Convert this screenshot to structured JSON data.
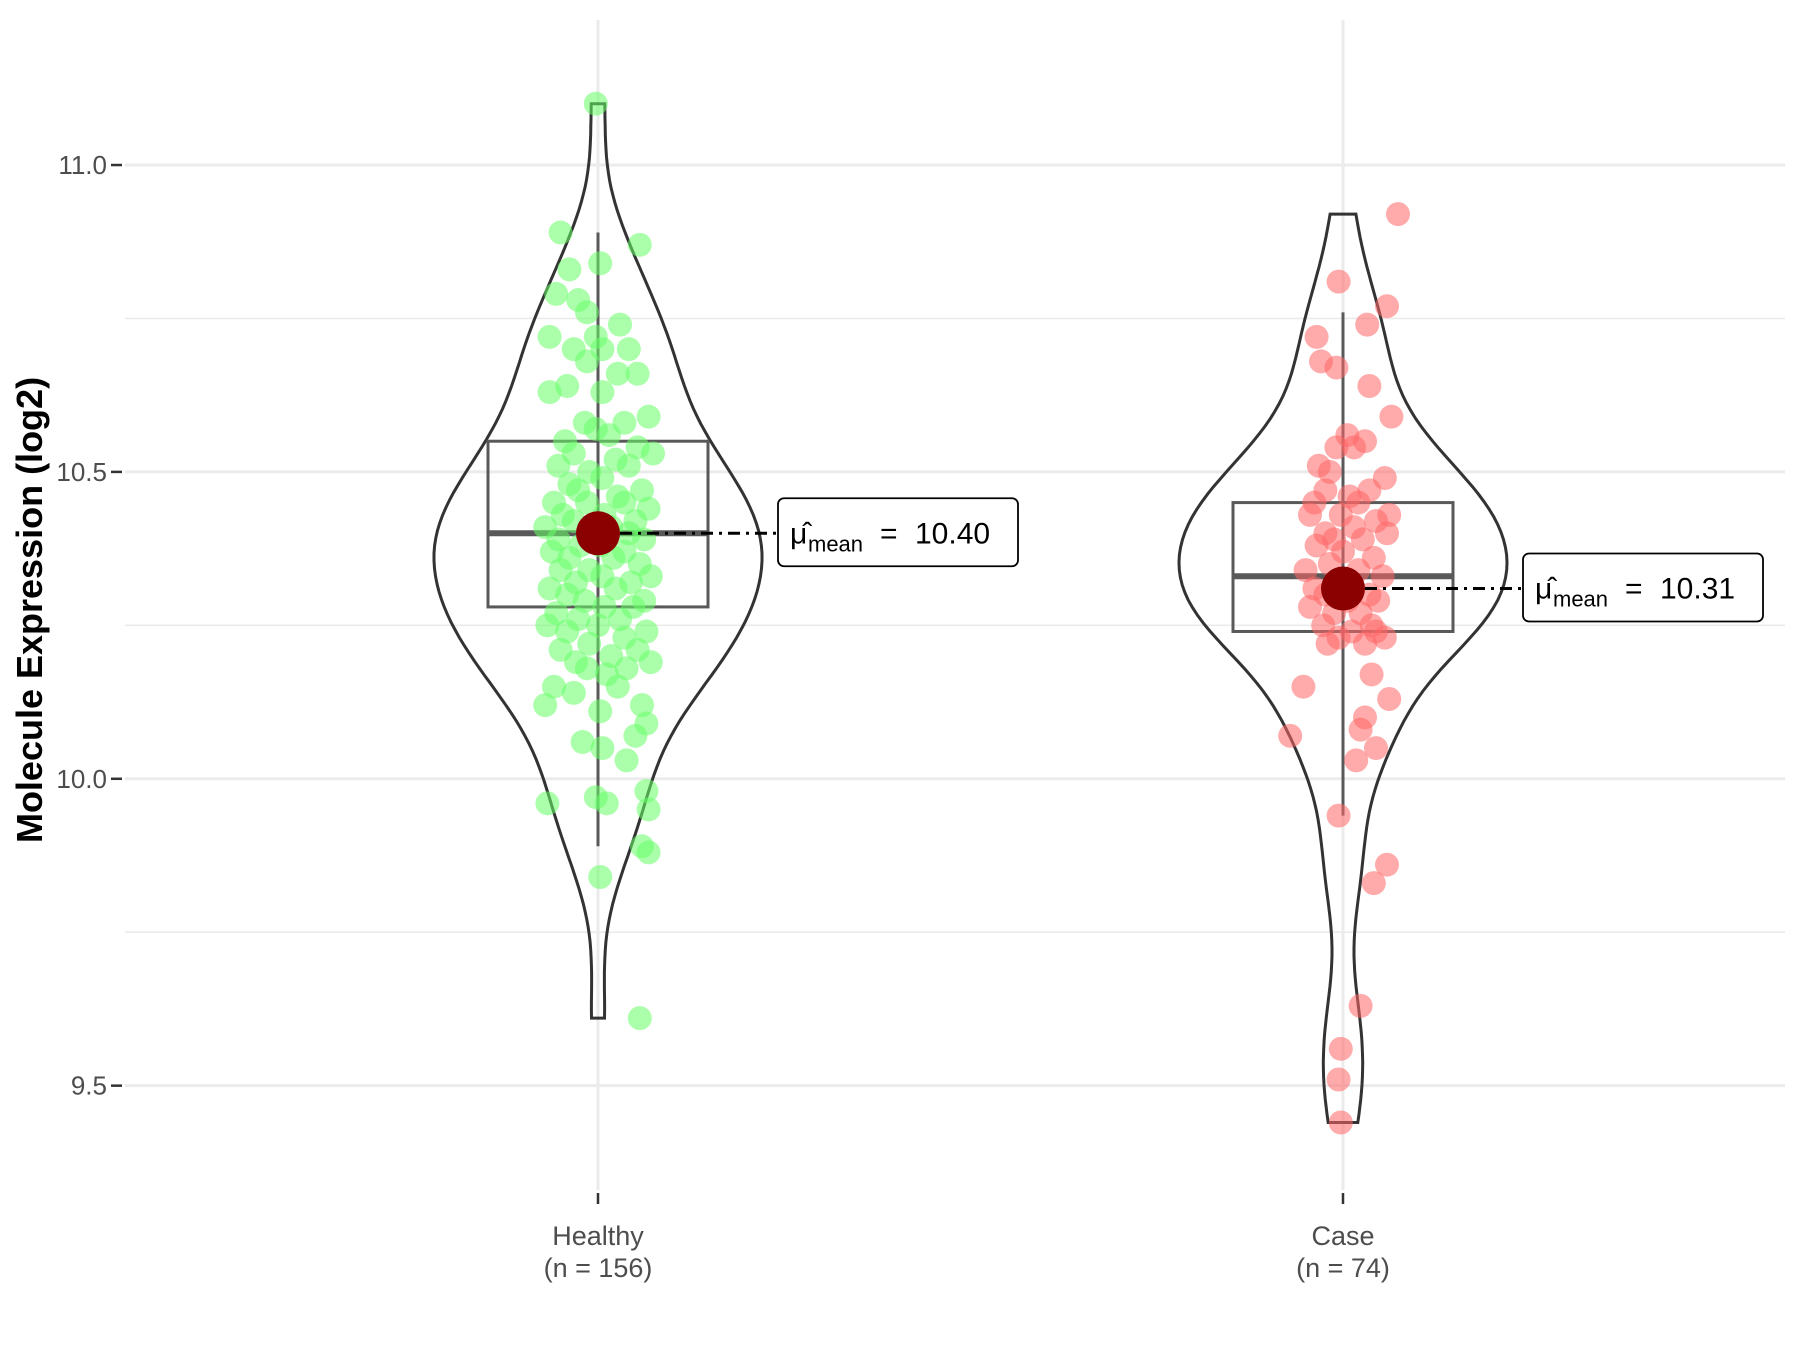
{
  "chart_data": {
    "type": "violin",
    "ylabel": "Molecule Expression (log2)",
    "xlabel": "",
    "ylim": [
      9.33,
      11.22
    ],
    "yticks": [
      9.5,
      10.0,
      10.5,
      11.0
    ],
    "ytick_labels": [
      "9.5",
      "10.0",
      "10.5",
      "11.0"
    ],
    "grid": true,
    "mean_color": "#8b0000",
    "groups": [
      {
        "key": "healthy",
        "name": "Healthy",
        "n_label": "(n = 156)",
        "color": "#66ff66",
        "violin_range": [
          9.61,
          11.1
        ],
        "whiskers": [
          9.89,
          10.89
        ],
        "box": {
          "q1": 10.28,
          "median": 10.4,
          "q3": 10.55
        },
        "mean": 10.4,
        "mean_label": "10.40",
        "mean_symbol": "μ̂",
        "mean_subscript": "mean",
        "points": [
          [
            -0.02,
            11.1
          ],
          [
            -0.34,
            10.89
          ],
          [
            0.38,
            10.87
          ],
          [
            -0.26,
            10.83
          ],
          [
            0.02,
            10.84
          ],
          [
            -0.38,
            10.79
          ],
          [
            -0.18,
            10.78
          ],
          [
            -0.1,
            10.76
          ],
          [
            0.2,
            10.74
          ],
          [
            -0.44,
            10.72
          ],
          [
            -0.02,
            10.72
          ],
          [
            0.04,
            10.7
          ],
          [
            -0.22,
            10.7
          ],
          [
            0.28,
            10.7
          ],
          [
            -0.1,
            10.68
          ],
          [
            0.36,
            10.66
          ],
          [
            0.18,
            10.66
          ],
          [
            -0.28,
            10.64
          ],
          [
            0.04,
            10.63
          ],
          [
            -0.44,
            10.63
          ],
          [
            0.46,
            10.59
          ],
          [
            0.24,
            10.58
          ],
          [
            -0.12,
            10.58
          ],
          [
            -0.02,
            10.57
          ],
          [
            0.1,
            10.56
          ],
          [
            -0.3,
            10.55
          ],
          [
            0.36,
            10.54
          ],
          [
            -0.22,
            10.53
          ],
          [
            0.5,
            10.53
          ],
          [
            0.16,
            10.52
          ],
          [
            -0.36,
            10.51
          ],
          [
            0.28,
            10.51
          ],
          [
            -0.08,
            10.5
          ],
          [
            0.04,
            10.49
          ],
          [
            -0.26,
            10.48
          ],
          [
            0.4,
            10.47
          ],
          [
            -0.18,
            10.47
          ],
          [
            0.18,
            10.46
          ],
          [
            -0.4,
            10.45
          ],
          [
            -0.1,
            10.45
          ],
          [
            0.24,
            10.45
          ],
          [
            0.46,
            10.44
          ],
          [
            -0.32,
            10.43
          ],
          [
            0.06,
            10.43
          ],
          [
            -0.22,
            10.42
          ],
          [
            0.34,
            10.42
          ],
          [
            -0.48,
            10.41
          ],
          [
            0.12,
            10.41
          ],
          [
            -0.06,
            10.4
          ],
          [
            0.28,
            10.4
          ],
          [
            -0.36,
            10.39
          ],
          [
            0.42,
            10.39
          ],
          [
            -0.16,
            10.38
          ],
          [
            0.02,
            10.38
          ],
          [
            -0.42,
            10.37
          ],
          [
            0.24,
            10.37
          ],
          [
            -0.26,
            10.36
          ],
          [
            0.14,
            10.36
          ],
          [
            0.38,
            10.35
          ],
          [
            -0.08,
            10.34
          ],
          [
            -0.34,
            10.34
          ],
          [
            0.48,
            10.33
          ],
          [
            0.04,
            10.33
          ],
          [
            -0.2,
            10.32
          ],
          [
            0.3,
            10.32
          ],
          [
            -0.44,
            10.31
          ],
          [
            0.16,
            10.31
          ],
          [
            -0.28,
            10.3
          ],
          [
            0.42,
            10.29
          ],
          [
            -0.12,
            10.29
          ],
          [
            0.06,
            10.28
          ],
          [
            0.32,
            10.28
          ],
          [
            -0.38,
            10.27
          ],
          [
            -0.18,
            10.26
          ],
          [
            0.2,
            10.26
          ],
          [
            -0.46,
            10.25
          ],
          [
            0.0,
            10.25
          ],
          [
            0.44,
            10.24
          ],
          [
            -0.28,
            10.24
          ],
          [
            0.24,
            10.23
          ],
          [
            -0.08,
            10.22
          ],
          [
            0.36,
            10.21
          ],
          [
            -0.34,
            10.21
          ],
          [
            0.12,
            10.2
          ],
          [
            -0.2,
            10.19
          ],
          [
            0.48,
            10.19
          ],
          [
            0.26,
            10.18
          ],
          [
            -0.1,
            10.18
          ],
          [
            0.08,
            10.17
          ],
          [
            -0.4,
            10.15
          ],
          [
            0.18,
            10.15
          ],
          [
            -0.22,
            10.14
          ],
          [
            0.4,
            10.12
          ],
          [
            -0.48,
            10.12
          ],
          [
            0.02,
            10.11
          ],
          [
            0.44,
            10.09
          ],
          [
            -0.14,
            10.06
          ],
          [
            0.34,
            10.07
          ],
          [
            0.04,
            10.05
          ],
          [
            0.26,
            10.03
          ],
          [
            0.44,
            9.98
          ],
          [
            -0.02,
            9.97
          ],
          [
            -0.46,
            9.96
          ],
          [
            0.46,
            9.95
          ],
          [
            0.08,
            9.96
          ],
          [
            0.4,
            9.89
          ],
          [
            0.46,
            9.88
          ],
          [
            0.02,
            9.84
          ],
          [
            0.38,
            9.61
          ]
        ]
      },
      {
        "key": "case",
        "name": "Case",
        "n_label": "(n = 74)",
        "color": "#ff6666",
        "violin_range": [
          9.44,
          10.92
        ],
        "whiskers": [
          9.94,
          10.76
        ],
        "box": {
          "q1": 10.24,
          "median": 10.33,
          "q3": 10.45
        },
        "mean": 10.31,
        "mean_label": "10.31",
        "mean_symbol": "μ̂",
        "mean_subscript": "mean",
        "points": [
          [
            0.5,
            10.92
          ],
          [
            -0.04,
            10.81
          ],
          [
            0.4,
            10.77
          ],
          [
            0.22,
            10.74
          ],
          [
            -0.24,
            10.72
          ],
          [
            -0.2,
            10.68
          ],
          [
            -0.06,
            10.67
          ],
          [
            0.24,
            10.64
          ],
          [
            0.44,
            10.59
          ],
          [
            0.04,
            10.56
          ],
          [
            0.2,
            10.55
          ],
          [
            0.1,
            10.54
          ],
          [
            -0.06,
            10.54
          ],
          [
            -0.22,
            10.51
          ],
          [
            -0.12,
            10.5
          ],
          [
            0.38,
            10.49
          ],
          [
            0.24,
            10.47
          ],
          [
            -0.16,
            10.47
          ],
          [
            0.06,
            10.46
          ],
          [
            -0.26,
            10.45
          ],
          [
            0.14,
            10.45
          ],
          [
            0.42,
            10.43
          ],
          [
            -0.02,
            10.43
          ],
          [
            -0.3,
            10.43
          ],
          [
            0.3,
            10.42
          ],
          [
            0.1,
            10.41
          ],
          [
            -0.16,
            10.4
          ],
          [
            0.4,
            10.4
          ],
          [
            -0.08,
            10.39
          ],
          [
            0.18,
            10.39
          ],
          [
            -0.24,
            10.38
          ],
          [
            0.0,
            10.37
          ],
          [
            0.28,
            10.36
          ],
          [
            -0.12,
            10.35
          ],
          [
            -0.34,
            10.34
          ],
          [
            0.14,
            10.34
          ],
          [
            0.36,
            10.33
          ],
          [
            -0.04,
            10.32
          ],
          [
            -0.26,
            10.31
          ],
          [
            0.24,
            10.3
          ],
          [
            -0.16,
            10.3
          ],
          [
            0.04,
            10.29
          ],
          [
            0.32,
            10.29
          ],
          [
            -0.3,
            10.28
          ],
          [
            0.16,
            10.27
          ],
          [
            -0.08,
            10.27
          ],
          [
            0.26,
            10.25
          ],
          [
            -0.18,
            10.25
          ],
          [
            0.38,
            10.23
          ],
          [
            0.08,
            10.24
          ],
          [
            -0.14,
            10.22
          ],
          [
            0.2,
            10.22
          ],
          [
            -0.04,
            10.23
          ],
          [
            0.3,
            10.24
          ],
          [
            0.26,
            10.17
          ],
          [
            -0.36,
            10.15
          ],
          [
            0.42,
            10.13
          ],
          [
            0.2,
            10.1
          ],
          [
            0.16,
            10.08
          ],
          [
            -0.48,
            10.07
          ],
          [
            0.3,
            10.05
          ],
          [
            0.12,
            10.03
          ],
          [
            -0.04,
            9.94
          ],
          [
            0.4,
            9.86
          ],
          [
            0.28,
            9.83
          ],
          [
            0.16,
            9.63
          ],
          [
            -0.02,
            9.56
          ],
          [
            -0.04,
            9.51
          ],
          [
            -0.02,
            9.44
          ]
        ]
      }
    ]
  }
}
